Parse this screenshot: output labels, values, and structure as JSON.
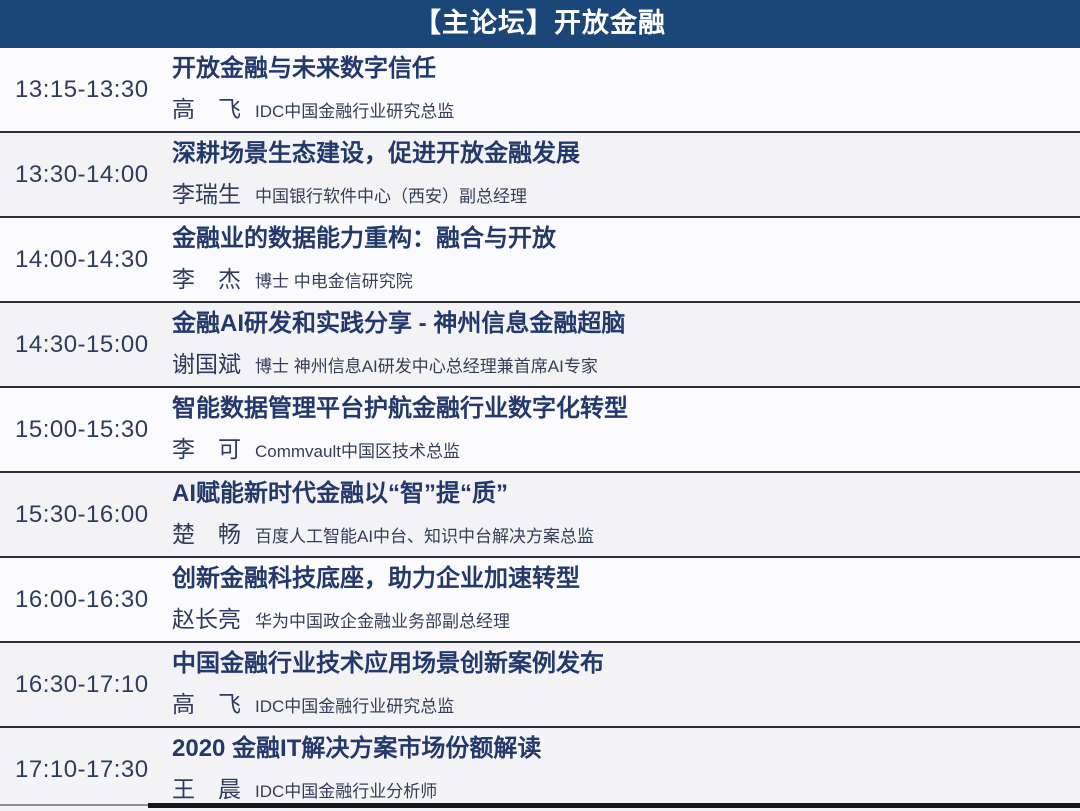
{
  "header": {
    "title": "【主论坛】开放金融",
    "bg_color": "#1b4778",
    "text_color": "#ffffff"
  },
  "colors": {
    "separator": "#2a2f3a",
    "row_light": "#fbfbfd",
    "row_gray": "#f3f3f5",
    "title_text": "#24396b",
    "body_text": "#2e3d5c"
  },
  "sessions": [
    {
      "time": "13:15-13:30",
      "title": "开放金融与未来数字信任",
      "speaker": "高　飞",
      "role": "IDC中国金融行业研究总监"
    },
    {
      "time": "13:30-14:00",
      "title": "深耕场景生态建设，促进开放金融发展",
      "speaker": "李瑞生",
      "role": "中国银行软件中心（西安）副总经理"
    },
    {
      "time": "14:00-14:30",
      "title": "金融业的数据能力重构：融合与开放",
      "speaker": "李　杰",
      "role": "博士 中电金信研究院"
    },
    {
      "time": "14:30-15:00",
      "title": "金融AI研发和实践分享 - 神州信息金融超脑",
      "speaker": "谢国斌",
      "role": "博士 神州信息AI研发中心总经理兼首席AI专家"
    },
    {
      "time": "15:00-15:30",
      "title": "智能数据管理平台护航金融行业数字化转型",
      "speaker": "李　可",
      "role": "Commvault中国区技术总监"
    },
    {
      "time": "15:30-16:00",
      "title": "AI赋能新时代金融以“智”提“质”",
      "speaker": "楚　畅",
      "role": "百度人工智能AI中台、知识中台解决方案总监"
    },
    {
      "time": "16:00-16:30",
      "title": "创新金融科技底座，助力企业加速转型",
      "speaker": "赵长亮",
      "role": "华为中国政企金融业务部副总经理"
    },
    {
      "time": "16:30-17:10",
      "title": "中国金融行业技术应用场景创新案例发布",
      "speaker": "高　飞",
      "role": "IDC中国金融行业研究总监"
    },
    {
      "time": "17:10-17:30",
      "title": "2020 金融IT解决方案市场份额解读",
      "speaker": "王　晨",
      "role": "IDC中国金融行业分析师"
    }
  ]
}
